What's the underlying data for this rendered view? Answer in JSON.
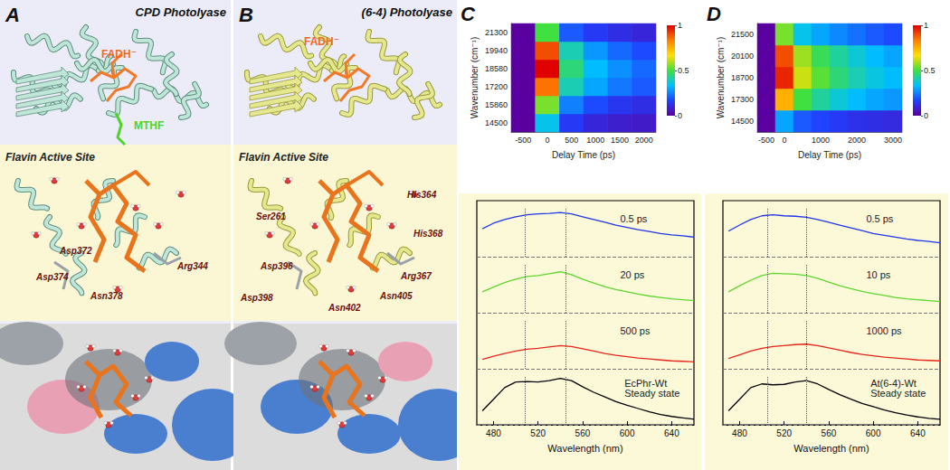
{
  "structures": [
    {
      "letter": "A",
      "title": "CPD Photolyase",
      "labels": [
        {
          "text": "FADH⁻",
          "color": "#f06a1e"
        },
        {
          "text": "MTHF",
          "color": "#4fd42a"
        }
      ],
      "inset_title": "Flavin Active Site",
      "residues": [
        "Asp372",
        "Asp374",
        "Asn378",
        "Arg344"
      ]
    },
    {
      "letter": "B",
      "title": "(6-4) Photolyase",
      "labels": [
        {
          "text": "FADH⁻",
          "color": "#f06a1e"
        }
      ],
      "inset_title": "Flavin Active Site",
      "residues": [
        "Ser261",
        "His364",
        "His368",
        "Asp396",
        "Arg367",
        "Asp398",
        "Asn405",
        "Asn402"
      ]
    }
  ],
  "chart_data": [
    {
      "type": "heatmap",
      "panel": "C",
      "x_label": "Delay Time (ps)",
      "y_label": "Wavenumber (cm⁻¹)",
      "x": [
        -500,
        0,
        500,
        1000,
        1500,
        2000
      ],
      "y": [
        14500,
        15860,
        17200,
        18580,
        19940,
        21300
      ],
      "cells": [
        [
          0,
          0.35,
          0.15,
          0.1,
          0.08,
          0.07
        ],
        [
          0,
          0.55,
          0.25,
          0.18,
          0.14,
          0.12
        ],
        [
          0,
          0.85,
          0.4,
          0.3,
          0.24,
          0.2
        ],
        [
          0,
          1.0,
          0.45,
          0.33,
          0.27,
          0.22
        ],
        [
          0,
          0.9,
          0.4,
          0.28,
          0.22,
          0.18
        ],
        [
          0,
          0.5,
          0.2,
          0.15,
          0.12,
          0.1
        ]
      ],
      "colorbar": {
        "range": [
          0,
          1
        ],
        "ticks": [
          0,
          0.5,
          1
        ]
      }
    },
    {
      "type": "line",
      "x_label": "Wavelength (nm)",
      "x": [
        470,
        480,
        490,
        500,
        510,
        520,
        530,
        540,
        550,
        560,
        570,
        580,
        590,
        600,
        610,
        620,
        630,
        640,
        650,
        660
      ],
      "xlim": [
        465,
        660
      ],
      "xticks": [
        480,
        520,
        560,
        600,
        640
      ],
      "ylim": [
        0,
        1.05
      ],
      "yticks": [
        0
      ],
      "tick_labels": "x",
      "vlines": [
        508,
        545
      ],
      "series": [
        {
          "name": "0.5 ps",
          "color": "#1f35e8",
          "values": [
            0.6,
            0.72,
            0.8,
            0.86,
            0.9,
            0.92,
            0.93,
            0.95,
            0.92,
            0.86,
            0.8,
            0.74,
            0.68,
            0.63,
            0.58,
            0.54,
            0.5,
            0.47,
            0.45,
            0.42
          ]
        },
        {
          "name": "20 ps",
          "color": "#5fd62e",
          "values": [
            0.45,
            0.55,
            0.65,
            0.72,
            0.78,
            0.8,
            0.84,
            0.88,
            0.82,
            0.72,
            0.64,
            0.56,
            0.5,
            0.45,
            0.4,
            0.36,
            0.33,
            0.3,
            0.28,
            0.26
          ]
        },
        {
          "name": "500 ps",
          "color": "#e8241c",
          "values": [
            0.2,
            0.27,
            0.33,
            0.38,
            0.42,
            0.44,
            0.47,
            0.5,
            0.48,
            0.43,
            0.38,
            0.33,
            0.29,
            0.26,
            0.23,
            0.21,
            0.19,
            0.17,
            0.16,
            0.15
          ]
        },
        {
          "name": "EcPhr-Wt Steady state",
          "color": "#000000",
          "values": [
            0.3,
            0.55,
            0.8,
            0.92,
            0.93,
            0.92,
            0.95,
            1.0,
            0.95,
            0.82,
            0.7,
            0.6,
            0.5,
            0.42,
            0.35,
            0.28,
            0.22,
            0.18,
            0.15,
            0.12
          ]
        }
      ]
    },
    {
      "type": "heatmap",
      "panel": "D",
      "x_label": "Delay Time (ps)",
      "y_label": "Wavenumber (cm⁻¹)",
      "x": [
        -500,
        0,
        null,
        1000,
        null,
        2000,
        null,
        3000
      ],
      "y": [
        14500,
        17300,
        18700,
        20100,
        21500
      ],
      "cells": [
        [
          0,
          0.3,
          0.2,
          0.17,
          0.15,
          0.13,
          0.12,
          0.11
        ],
        [
          0,
          0.75,
          0.5,
          0.42,
          0.37,
          0.33,
          0.3,
          0.28
        ],
        [
          0,
          0.95,
          0.62,
          0.52,
          0.45,
          0.4,
          0.36,
          0.33
        ],
        [
          0,
          0.9,
          0.58,
          0.48,
          0.42,
          0.37,
          0.33,
          0.3
        ],
        [
          0,
          0.55,
          0.35,
          0.3,
          0.26,
          0.23,
          0.2,
          0.18
        ]
      ],
      "colorbar": {
        "range": [
          0,
          1
        ],
        "ticks": [
          0,
          0.5,
          1
        ]
      }
    },
    {
      "type": "line",
      "x_label": "Wavelength (nm)",
      "x": [
        470,
        480,
        490,
        500,
        510,
        520,
        530,
        540,
        550,
        560,
        570,
        580,
        590,
        600,
        610,
        620,
        630,
        640,
        650,
        660
      ],
      "xlim": [
        465,
        660
      ],
      "xticks": [
        480,
        520,
        560,
        600,
        640
      ],
      "ylim": [
        0,
        1.05
      ],
      "yticks": [
        0
      ],
      "tick_labels": "x",
      "vlines": [
        505,
        540
      ],
      "series": [
        {
          "name": "0.5 ps",
          "color": "#1f35e8",
          "values": [
            0.55,
            0.68,
            0.8,
            0.88,
            0.9,
            0.88,
            0.87,
            0.85,
            0.8,
            0.74,
            0.68,
            0.62,
            0.56,
            0.5,
            0.46,
            0.42,
            0.38,
            0.35,
            0.33,
            0.3
          ]
        },
        {
          "name": "10 ps",
          "color": "#5fd62e",
          "values": [
            0.45,
            0.58,
            0.7,
            0.8,
            0.85,
            0.84,
            0.83,
            0.8,
            0.74,
            0.66,
            0.58,
            0.52,
            0.46,
            0.41,
            0.37,
            0.33,
            0.3,
            0.28,
            0.26,
            0.24
          ]
        },
        {
          "name": "1000 ps",
          "color": "#e8241c",
          "values": [
            0.22,
            0.3,
            0.38,
            0.44,
            0.48,
            0.5,
            0.52,
            0.53,
            0.5,
            0.45,
            0.4,
            0.35,
            0.31,
            0.28,
            0.25,
            0.23,
            0.21,
            0.19,
            0.18,
            0.17
          ]
        },
        {
          "name": "At(6-4)-Wt Steady state",
          "color": "#000000",
          "values": [
            0.3,
            0.55,
            0.8,
            0.88,
            0.86,
            0.87,
            0.92,
            0.95,
            0.88,
            0.76,
            0.65,
            0.55,
            0.46,
            0.39,
            0.32,
            0.26,
            0.21,
            0.17,
            0.14,
            0.12
          ]
        }
      ]
    }
  ]
}
